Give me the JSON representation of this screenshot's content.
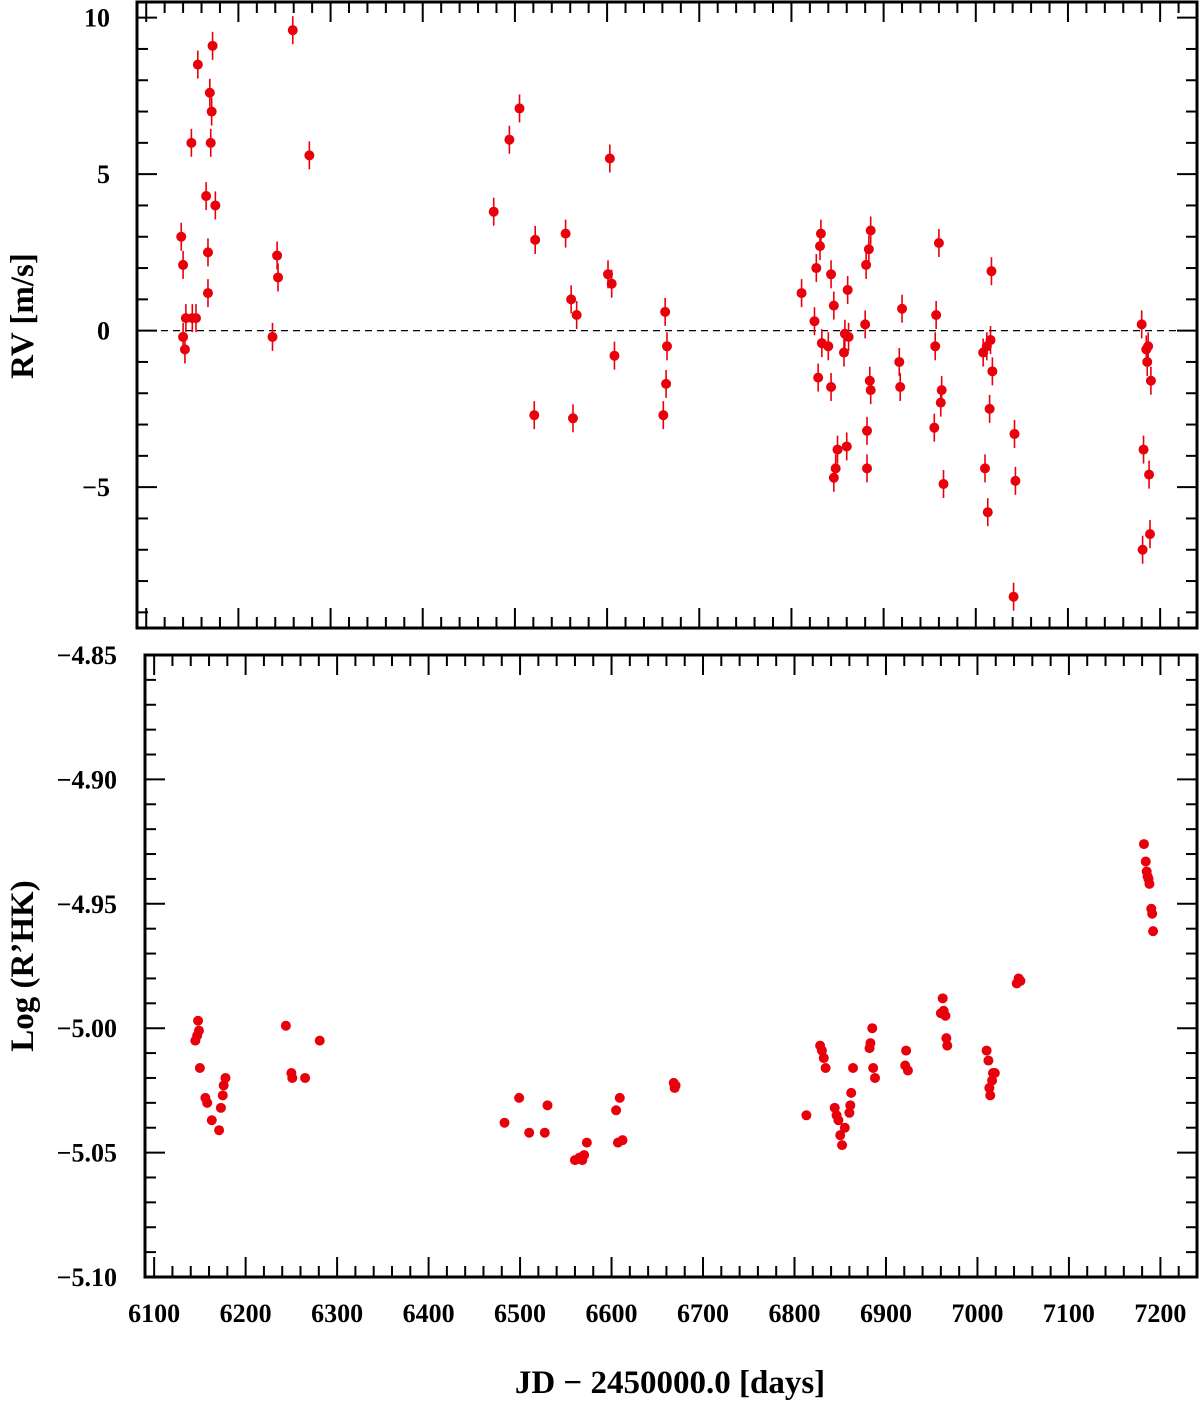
{
  "chart_data": [
    {
      "type": "scatter",
      "panel": "top",
      "ylabel": "RV [m/s]",
      "xlim": [
        6090,
        7240
      ],
      "ylim": [
        -9.5,
        10.5
      ],
      "yticks": [
        10,
        5,
        0,
        -5
      ],
      "ytick_labels": [
        "10",
        "5",
        "0",
        "−5"
      ],
      "reference_line": {
        "y": 0,
        "style": "dashed"
      },
      "point_color": "#e8000b",
      "error_bars": true,
      "series": [
        {
          "points": [
            [
              6138,
              3.0
            ],
            [
              6140,
              2.1
            ],
            [
              6140,
              -0.2
            ],
            [
              6142,
              -0.6
            ],
            [
              6143,
              0.4
            ],
            [
              6149,
              6.0
            ],
            [
              6150,
              0.4
            ],
            [
              6154,
              0.4
            ],
            [
              6156,
              8.5
            ],
            [
              6165,
              4.3
            ],
            [
              6167,
              2.5
            ],
            [
              6167,
              1.2
            ],
            [
              6169,
              7.6
            ],
            [
              6170,
              6.0
            ],
            [
              6171,
              7.0
            ],
            [
              6172,
              9.1
            ],
            [
              6175,
              4.0
            ],
            [
              6237,
              -0.2
            ],
            [
              6242,
              2.4
            ],
            [
              6243,
              1.7
            ],
            [
              6259,
              9.6
            ],
            [
              6277,
              5.6
            ],
            [
              6477,
              3.8
            ],
            [
              6494,
              6.1
            ],
            [
              6505,
              7.1
            ],
            [
              6521,
              -2.7
            ],
            [
              6522,
              2.9
            ],
            [
              6555,
              3.1
            ],
            [
              6561,
              1.0
            ],
            [
              6563,
              -2.8
            ],
            [
              6567,
              0.5
            ],
            [
              6601,
              1.8
            ],
            [
              6603,
              5.5
            ],
            [
              6605,
              1.5
            ],
            [
              6608,
              -0.8
            ],
            [
              6661,
              -2.7
            ],
            [
              6663,
              0.6
            ],
            [
              6664,
              -1.7
            ],
            [
              6665,
              -0.5
            ],
            [
              6811,
              1.2
            ],
            [
              6825,
              0.3
            ],
            [
              6827,
              2.0
            ],
            [
              6829,
              -1.5
            ],
            [
              6831,
              2.7
            ],
            [
              6832,
              3.1
            ],
            [
              6833,
              -0.4
            ],
            [
              6840,
              -0.5
            ],
            [
              6843,
              1.8
            ],
            [
              6843,
              -1.8
            ],
            [
              6846,
              0.8
            ],
            [
              6846,
              -4.7
            ],
            [
              6848,
              -4.4
            ],
            [
              6850,
              -3.8
            ],
            [
              6857,
              -0.7
            ],
            [
              6858,
              -0.1
            ],
            [
              6860,
              -3.7
            ],
            [
              6861,
              1.3
            ],
            [
              6862,
              -0.2
            ],
            [
              6880,
              0.2
            ],
            [
              6881,
              2.1
            ],
            [
              6882,
              -3.2
            ],
            [
              6882,
              -4.4
            ],
            [
              6884,
              2.6
            ],
            [
              6885,
              -1.6
            ],
            [
              6886,
              -1.9
            ],
            [
              6886,
              3.2
            ],
            [
              6917,
              -1.0
            ],
            [
              6918,
              -1.8
            ],
            [
              6920,
              0.7
            ],
            [
              6955,
              -3.1
            ],
            [
              6956,
              -0.5
            ],
            [
              6957,
              0.5
            ],
            [
              6960,
              2.8
            ],
            [
              6962,
              -2.3
            ],
            [
              6963,
              -1.9
            ],
            [
              6965,
              -4.9
            ],
            [
              7008,
              -0.7
            ],
            [
              7010,
              -4.4
            ],
            [
              7012,
              -0.5
            ],
            [
              7013,
              -5.8
            ],
            [
              7015,
              -2.5
            ],
            [
              7016,
              -0.3
            ],
            [
              7017,
              1.9
            ],
            [
              7018,
              -1.3
            ],
            [
              7041,
              -8.5
            ],
            [
              7042,
              -3.3
            ],
            [
              7043,
              -4.8
            ],
            [
              7180,
              0.2
            ],
            [
              7181,
              -7.0
            ],
            [
              7182,
              -3.8
            ],
            [
              7185,
              -0.6
            ],
            [
              7186,
              -1.0
            ],
            [
              7187,
              -0.5
            ],
            [
              7188,
              -4.6
            ],
            [
              7189,
              -6.5
            ],
            [
              7190,
              -1.6
            ]
          ]
        }
      ]
    },
    {
      "type": "scatter",
      "panel": "bottom",
      "xlabel": "JD − 2450000.0 [days]",
      "ylabel": "Log (R’HK)",
      "xlim": [
        6090,
        7240
      ],
      "ylim": [
        -5.1,
        -4.85
      ],
      "xticks": [
        6100,
        6200,
        6300,
        6400,
        6500,
        6600,
        6700,
        6800,
        6900,
        7000,
        7100,
        7200
      ],
      "xtick_labels": [
        "6100",
        "6200",
        "6300",
        "6400",
        "6500",
        "6600",
        "6700",
        "6800",
        "6900",
        "7000",
        "7100",
        "7200"
      ],
      "yticks": [
        -4.85,
        -4.9,
        -4.95,
        -5.0,
        -5.05,
        -5.1
      ],
      "ytick_labels": [
        "−4.85",
        "−4.90",
        "−4.95",
        "−5.00",
        "−5.05",
        "−5.10"
      ],
      "point_color": "#e8000b",
      "series": [
        {
          "points": [
            [
              6145,
              -5.005
            ],
            [
              6147,
              -5.003
            ],
            [
              6148,
              -4.997
            ],
            [
              6149,
              -5.001
            ],
            [
              6150,
              -5.016
            ],
            [
              6156,
              -5.028
            ],
            [
              6158,
              -5.03
            ],
            [
              6163,
              -5.037
            ],
            [
              6171,
              -5.041
            ],
            [
              6173,
              -5.032
            ],
            [
              6175,
              -5.027
            ],
            [
              6176,
              -5.023
            ],
            [
              6178,
              -5.02
            ],
            [
              6244,
              -4.999
            ],
            [
              6250,
              -5.018
            ],
            [
              6251,
              -5.02
            ],
            [
              6265,
              -5.02
            ],
            [
              6281,
              -5.005
            ],
            [
              6483,
              -5.038
            ],
            [
              6499,
              -5.028
            ],
            [
              6510,
              -5.042
            ],
            [
              6527,
              -5.042
            ],
            [
              6530,
              -5.031
            ],
            [
              6560,
              -5.053
            ],
            [
              6565,
              -5.052
            ],
            [
              6568,
              -5.053
            ],
            [
              6570,
              -5.051
            ],
            [
              6573,
              -5.046
            ],
            [
              6605,
              -5.033
            ],
            [
              6607,
              -5.046
            ],
            [
              6609,
              -5.028
            ],
            [
              6612,
              -5.045
            ],
            [
              6668,
              -5.022
            ],
            [
              6669,
              -5.024
            ],
            [
              6670,
              -5.023
            ],
            [
              6813,
              -5.035
            ],
            [
              6828,
              -5.007
            ],
            [
              6830,
              -5.009
            ],
            [
              6832,
              -5.012
            ],
            [
              6834,
              -5.016
            ],
            [
              6844,
              -5.032
            ],
            [
              6846,
              -5.035
            ],
            [
              6848,
              -5.037
            ],
            [
              6850,
              -5.043
            ],
            [
              6852,
              -5.047
            ],
            [
              6855,
              -5.04
            ],
            [
              6860,
              -5.034
            ],
            [
              6861,
              -5.031
            ],
            [
              6862,
              -5.026
            ],
            [
              6864,
              -5.016
            ],
            [
              6882,
              -5.008
            ],
            [
              6883,
              -5.006
            ],
            [
              6885,
              -5.0
            ],
            [
              6886,
              -5.016
            ],
            [
              6888,
              -5.02
            ],
            [
              6921,
              -5.015
            ],
            [
              6922,
              -5.009
            ],
            [
              6924,
              -5.017
            ],
            [
              6960,
              -4.994
            ],
            [
              6962,
              -4.988
            ],
            [
              6963,
              -4.993
            ],
            [
              6965,
              -4.995
            ],
            [
              6966,
              -5.004
            ],
            [
              6967,
              -5.007
            ],
            [
              7010,
              -5.009
            ],
            [
              7012,
              -5.013
            ],
            [
              7013,
              -5.024
            ],
            [
              7014,
              -5.027
            ],
            [
              7016,
              -5.021
            ],
            [
              7017,
              -5.018
            ],
            [
              7019,
              -5.018
            ],
            [
              7043,
              -4.982
            ],
            [
              7045,
              -4.98
            ],
            [
              7047,
              -4.981
            ],
            [
              7182,
              -4.926
            ],
            [
              7184,
              -4.933
            ],
            [
              7185,
              -4.937
            ],
            [
              7186,
              -4.939
            ],
            [
              7187,
              -4.94
            ],
            [
              7188,
              -4.942
            ],
            [
              7190,
              -4.952
            ],
            [
              7191,
              -4.954
            ],
            [
              7192,
              -4.961
            ]
          ]
        }
      ]
    }
  ]
}
